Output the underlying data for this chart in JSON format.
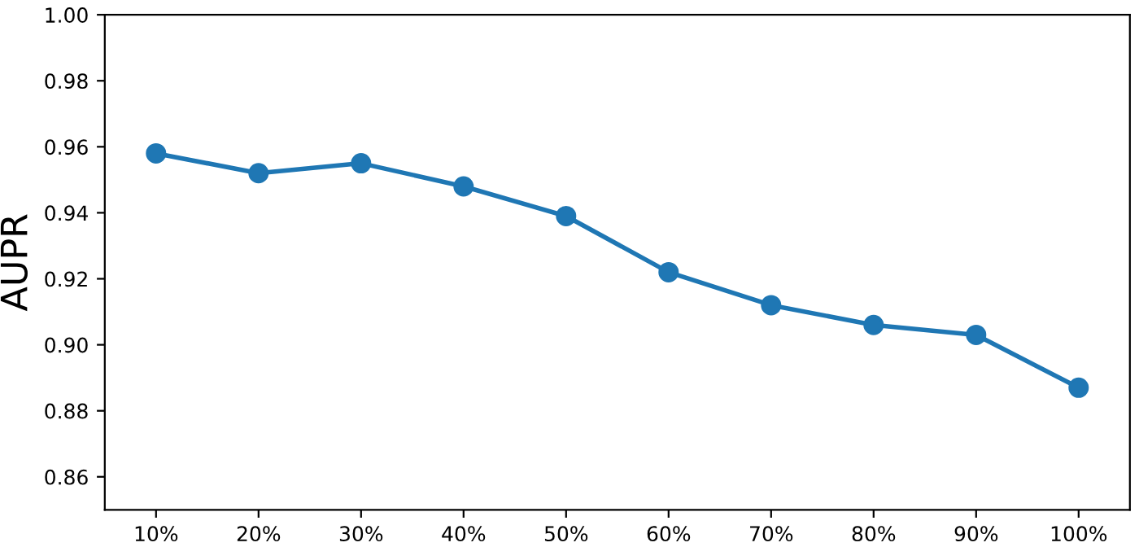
{
  "chart_data": {
    "type": "line",
    "ylabel": "AUPR",
    "categories": [
      "10%",
      "20%",
      "30%",
      "40%",
      "50%",
      "60%",
      "70%",
      "80%",
      "90%",
      "100%"
    ],
    "series": [
      {
        "color": "#1f77b4",
        "values": [
          0.958,
          0.952,
          0.955,
          0.948,
          0.939,
          0.922,
          0.912,
          0.906,
          0.903,
          0.887
        ]
      }
    ],
    "ylim": [
      0.85,
      1.0
    ],
    "yticks": [
      {
        "value": 0.86,
        "label": "0.86"
      },
      {
        "value": 0.88,
        "label": "0.88"
      },
      {
        "value": 0.9,
        "label": "0.90"
      },
      {
        "value": 0.92,
        "label": "0.92"
      },
      {
        "value": 0.94,
        "label": "0.94"
      },
      {
        "value": 0.96,
        "label": "0.96"
      },
      {
        "value": 0.98,
        "label": "0.98"
      },
      {
        "value": 1.0,
        "label": "1.00"
      }
    ],
    "marker": "circle",
    "line_style": "solid",
    "grid": false
  }
}
